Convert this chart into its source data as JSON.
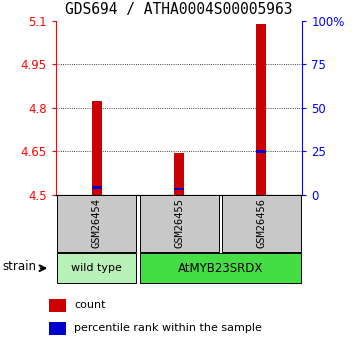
{
  "title": "GDS694 / ATHA0004S00005963",
  "samples": [
    "GSM26454",
    "GSM26455",
    "GSM26456"
  ],
  "count_values": [
    4.825,
    4.645,
    5.09
  ],
  "percentile_values": [
    4.522,
    4.516,
    4.645
  ],
  "ylim_left": [
    4.5,
    5.1
  ],
  "ylim_right": [
    0,
    100
  ],
  "yticks_left": [
    4.5,
    4.65,
    4.8,
    4.95,
    5.1
  ],
  "yticks_right": [
    0,
    25,
    50,
    75,
    100
  ],
  "ytick_labels_right": [
    "0",
    "25",
    "50",
    "75",
    "100%"
  ],
  "bar_width": 0.12,
  "bar_color": "#cc0000",
  "percentile_color": "#0000cc",
  "sample_box_color": "#c8c8c8",
  "strain_labels": [
    "wild type",
    "AtMYB23SRDX"
  ],
  "strain_colors": [
    "#b8f0b8",
    "#44dd44"
  ],
  "legend_count_label": "count",
  "legend_percentile_label": "percentile rank within the sample",
  "title_fontsize": 10.5,
  "tick_fontsize": 8.5,
  "base_value": 4.5
}
